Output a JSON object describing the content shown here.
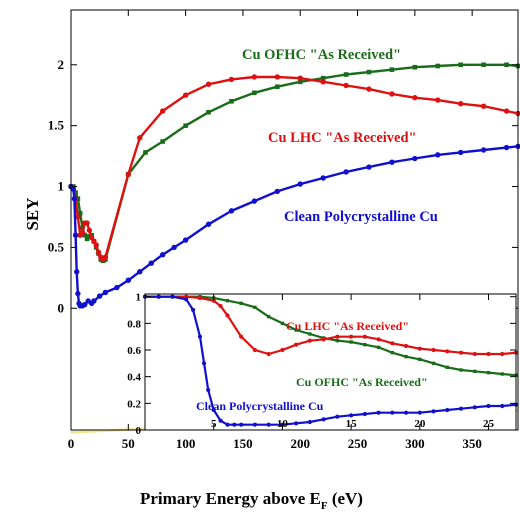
{
  "chart_data": [
    {
      "type": "line",
      "ylabel": "SEY",
      "xlabel_main": "Primary Energy above E",
      "xlabel_sub": "F",
      "xlabel_unit": " (eV)",
      "xlim": [
        0,
        390
      ],
      "ylim": [
        -1.0,
        2.45
      ],
      "xticks": [
        0,
        50,
        100,
        150,
        200,
        250,
        300,
        350
      ],
      "yticks": [
        0,
        0.5,
        1,
        1.5,
        2
      ],
      "ytick_labels": [
        "0",
        "0.5",
        "1",
        "1.5",
        "2"
      ],
      "grid": false,
      "series": [
        {
          "name": "Cu  OFHC \"As Received\"",
          "color": "#1a6b1a",
          "marker": "square",
          "x": [
            0,
            2,
            4,
            6,
            8,
            10,
            12,
            14,
            16,
            18,
            20,
            22,
            24,
            26,
            28,
            30,
            50,
            65,
            80,
            100,
            120,
            140,
            160,
            180,
            200,
            220,
            240,
            260,
            280,
            300,
            320,
            340,
            360,
            380,
            390
          ],
          "y": [
            1.0,
            1.0,
            0.95,
            0.9,
            0.78,
            0.66,
            0.6,
            0.57,
            0.59,
            0.6,
            0.55,
            0.5,
            0.45,
            0.4,
            0.39,
            0.4,
            1.1,
            1.28,
            1.37,
            1.5,
            1.61,
            1.7,
            1.77,
            1.82,
            1.86,
            1.89,
            1.92,
            1.94,
            1.96,
            1.98,
            1.99,
            2.0,
            2.0,
            2.0,
            1.99
          ]
        },
        {
          "name": "Cu  LHC \"As Received\"",
          "color": "#dd1111",
          "marker": "circle",
          "x": [
            0,
            2,
            4,
            6,
            8,
            10,
            12,
            14,
            16,
            18,
            20,
            22,
            24,
            26,
            28,
            30,
            50,
            60,
            80,
            100,
            120,
            140,
            160,
            180,
            200,
            220,
            240,
            260,
            280,
            300,
            320,
            340,
            360,
            380,
            390
          ],
          "y": [
            1.0,
            0.98,
            0.9,
            0.75,
            0.6,
            0.62,
            0.7,
            0.7,
            0.64,
            0.58,
            0.55,
            0.52,
            0.46,
            0.42,
            0.4,
            0.42,
            1.1,
            1.4,
            1.62,
            1.75,
            1.84,
            1.88,
            1.9,
            1.9,
            1.89,
            1.86,
            1.83,
            1.8,
            1.76,
            1.73,
            1.71,
            1.68,
            1.66,
            1.62,
            1.6
          ]
        },
        {
          "name": "Clean Polycrystalline Cu",
          "color": "#1010cc",
          "marker": "circle",
          "x": [
            0,
            2,
            3,
            4,
            5,
            6,
            7,
            8,
            10,
            12,
            15,
            18,
            20,
            25,
            30,
            40,
            50,
            60,
            70,
            80,
            90,
            100,
            120,
            140,
            160,
            180,
            200,
            220,
            240,
            260,
            280,
            300,
            320,
            340,
            360,
            380,
            390
          ],
          "y": [
            1.0,
            0.98,
            0.9,
            0.6,
            0.3,
            0.12,
            0.04,
            0.02,
            0.02,
            0.03,
            0.06,
            0.04,
            0.06,
            0.1,
            0.13,
            0.17,
            0.23,
            0.3,
            0.37,
            0.44,
            0.5,
            0.56,
            0.69,
            0.8,
            0.88,
            0.96,
            1.02,
            1.07,
            1.12,
            1.16,
            1.2,
            1.23,
            1.26,
            1.28,
            1.3,
            1.32,
            1.33
          ]
        },
        {
          "name": "",
          "color": "#f3e58a",
          "marker": "none",
          "x": [
            0,
            390
          ],
          "y": [
            -1.02,
            -0.84
          ]
        }
      ],
      "annotations": [
        {
          "text": "Cu  OFHC \"As Received\"",
          "color": "#1a6b1a"
        },
        {
          "text": "Cu  LHC \"As Received\"",
          "color": "#dd1111"
        },
        {
          "text": "Clean Polycrystalline Cu",
          "color": "#1010cc"
        }
      ]
    },
    {
      "type": "line",
      "xlim": [
        0,
        27
      ],
      "ylim": [
        0,
        1.02
      ],
      "xticks": [
        5,
        10,
        15,
        20,
        25
      ],
      "yticks": [
        0,
        0.2,
        0.4,
        0.6,
        0.8,
        1
      ],
      "ytick_labels": [
        "0",
        "0.2",
        "0.4",
        "0.6",
        "0.8",
        "1"
      ],
      "grid": false,
      "series": [
        {
          "name": "Cu  OFHC \"As Received\"",
          "color": "#1a6b1a",
          "marker": "square",
          "x": [
            0,
            1,
            2,
            3,
            4,
            5,
            6,
            7,
            8,
            9,
            10,
            11,
            12,
            13,
            14,
            15,
            16,
            17,
            18,
            19,
            20,
            21,
            22,
            23,
            24,
            25,
            26,
            27
          ],
          "y": [
            1.0,
            1.0,
            1.0,
            1.0,
            1.0,
            0.99,
            0.97,
            0.95,
            0.92,
            0.85,
            0.8,
            0.75,
            0.72,
            0.69,
            0.67,
            0.66,
            0.64,
            0.62,
            0.58,
            0.55,
            0.53,
            0.5,
            0.47,
            0.45,
            0.44,
            0.43,
            0.42,
            0.41
          ]
        },
        {
          "name": "Cu  LHC \"As Received\"",
          "color": "#dd1111",
          "marker": "circle",
          "x": [
            0,
            1,
            2,
            3,
            4,
            5,
            5.5,
            6,
            7,
            8,
            9,
            10,
            11,
            12,
            13,
            14,
            15,
            16,
            17,
            18,
            19,
            20,
            21,
            22,
            23,
            24,
            25,
            26,
            27
          ],
          "y": [
            1.0,
            1.0,
            1.0,
            1.0,
            0.99,
            0.97,
            0.93,
            0.86,
            0.7,
            0.6,
            0.57,
            0.6,
            0.64,
            0.67,
            0.68,
            0.7,
            0.7,
            0.7,
            0.68,
            0.65,
            0.63,
            0.61,
            0.6,
            0.59,
            0.58,
            0.57,
            0.57,
            0.57,
            0.58
          ]
        },
        {
          "name": "Clean Polycrystalline Cu",
          "color": "#1010cc",
          "marker": "circle",
          "x": [
            0,
            1,
            2,
            3,
            3.5,
            4,
            4.3,
            4.6,
            5,
            5.5,
            6,
            6.5,
            7,
            8,
            9,
            10,
            11,
            12,
            13,
            14,
            15,
            16,
            17,
            18,
            19,
            20,
            21,
            22,
            23,
            24,
            25,
            26,
            27
          ],
          "y": [
            1.0,
            1.0,
            1.0,
            0.98,
            0.9,
            0.7,
            0.5,
            0.3,
            0.15,
            0.07,
            0.04,
            0.04,
            0.04,
            0.04,
            0.04,
            0.04,
            0.05,
            0.06,
            0.08,
            0.1,
            0.11,
            0.12,
            0.13,
            0.13,
            0.13,
            0.13,
            0.14,
            0.15,
            0.16,
            0.17,
            0.18,
            0.18,
            0.19
          ]
        }
      ],
      "annotations": [
        {
          "text": "Cu  LHC \"As Received\"",
          "color": "#dd1111"
        },
        {
          "text": "Cu  OFHC \"As Received\"",
          "color": "#1a6b1a"
        },
        {
          "text": "Clean Polycrystalline Cu",
          "color": "#1010cc"
        }
      ]
    }
  ]
}
